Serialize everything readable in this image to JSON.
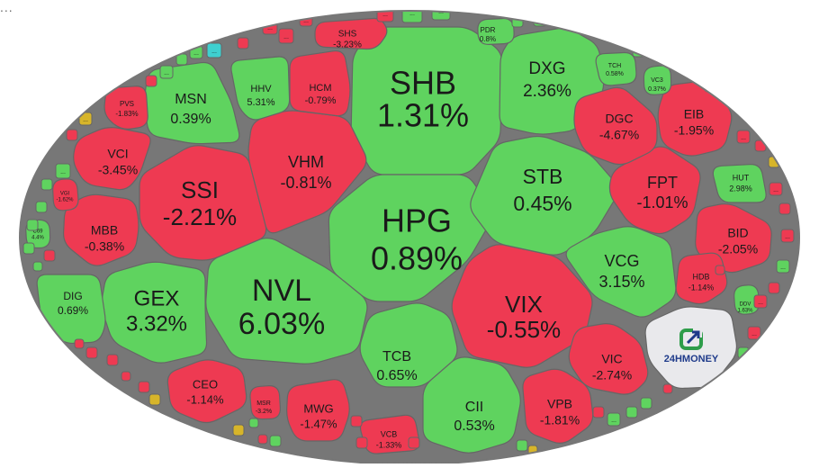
{
  "header_dots": "...",
  "logo": {
    "text": "24HMONEY",
    "colors": {
      "green": "#2e9d4a",
      "blue": "#1e3a8a"
    }
  },
  "colors": {
    "up": "#5fd35f",
    "down": "#ee3a52",
    "ref": "#d7b52a",
    "ceiling": "#3fd0d0",
    "border": "#666666",
    "logo_bg": "#e9e9ec"
  },
  "chart_data": {
    "type": "treemap",
    "cells": [
      {
        "name": "SHB",
        "pct": "1.31%",
        "change": 1.31
      },
      {
        "name": "HPG",
        "pct": "0.89%",
        "change": 0.89
      },
      {
        "name": "NVL",
        "pct": "6.03%",
        "change": 6.03
      },
      {
        "name": "SSI",
        "pct": "-2.21%",
        "change": -2.21
      },
      {
        "name": "VIX",
        "pct": "-0.55%",
        "change": -0.55
      },
      {
        "name": "STB",
        "pct": "0.45%",
        "change": 0.45
      },
      {
        "name": "GEX",
        "pct": "3.32%",
        "change": 3.32
      },
      {
        "name": "DXG",
        "pct": "2.36%",
        "change": 2.36
      },
      {
        "name": "VHM",
        "pct": "-0.81%",
        "change": -0.81
      },
      {
        "name": "FPT",
        "pct": "-1.01%",
        "change": -1.01
      },
      {
        "name": "VCG",
        "pct": "3.15%",
        "change": 3.15
      },
      {
        "name": "MSN",
        "pct": "0.39%",
        "change": 0.39
      },
      {
        "name": "TCB",
        "pct": "0.65%",
        "change": 0.65
      },
      {
        "name": "CII",
        "pct": "0.53%",
        "change": 0.53
      },
      {
        "name": "MBB",
        "pct": "-0.38%",
        "change": -0.38
      },
      {
        "name": "VCI",
        "pct": "-3.45%",
        "change": -3.45
      },
      {
        "name": "BID",
        "pct": "-2.05%",
        "change": -2.05
      },
      {
        "name": "DGC",
        "pct": "-4.67%",
        "change": -4.67
      },
      {
        "name": "EIB",
        "pct": "-1.95%",
        "change": -1.95
      },
      {
        "name": "HHV",
        "pct": "5.31%",
        "change": 5.31
      },
      {
        "name": "HCM",
        "pct": "-0.79%",
        "change": -0.79
      },
      {
        "name": "VIC",
        "pct": "-2.74%",
        "change": -2.74
      },
      {
        "name": "VPB",
        "pct": "-1.81%",
        "change": -1.81
      },
      {
        "name": "CEO",
        "pct": "-1.14%",
        "change": -1.14
      },
      {
        "name": "MWG",
        "pct": "-1.47%",
        "change": -1.47
      },
      {
        "name": "DIG",
        "pct": "0.69%",
        "change": 0.69
      },
      {
        "name": "SHS",
        "pct": "-3.23%",
        "change": -3.23
      },
      {
        "name": "HUT",
        "pct": "2.98%",
        "change": 2.98
      },
      {
        "name": "HDB",
        "pct": "-1.14%",
        "change": -1.14
      },
      {
        "name": "VCB",
        "pct": "-1.33%",
        "change": -1.33
      },
      {
        "name": "PVS",
        "pct": "-1.83%",
        "change": -1.83
      },
      {
        "name": "PDR",
        "pct": "0.8%",
        "change": 0.8
      },
      {
        "name": "TCH",
        "pct": "0.58%",
        "change": 0.58
      },
      {
        "name": "MSR",
        "pct": "-3.2%",
        "change": -3.2
      },
      {
        "name": "VC3",
        "pct": "0.37%",
        "change": 0.37
      },
      {
        "name": "VGI",
        "pct": "-1.62%",
        "change": -1.62
      },
      {
        "name": "DDV",
        "pct": "1.63%",
        "change": 1.63
      },
      {
        "name": "C69",
        "pct": "4.4%",
        "change": 4.4
      }
    ],
    "small_cell_label": "..."
  }
}
